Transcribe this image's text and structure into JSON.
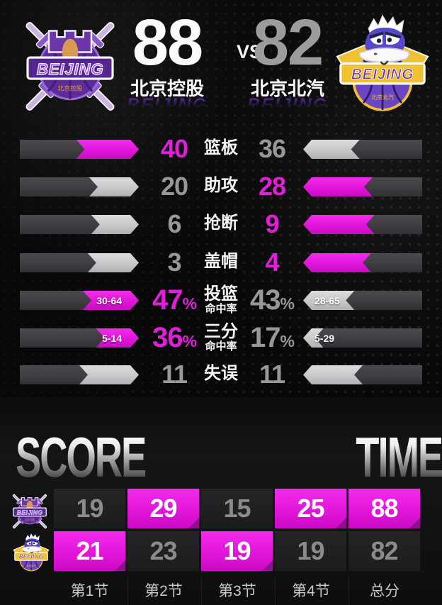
{
  "header": {
    "vs": "VS",
    "home": {
      "name": "北京控股",
      "latin": "BEIJING",
      "score": "88"
    },
    "away": {
      "name": "北京北汽",
      "latin": "BEIJING",
      "score": "82"
    }
  },
  "stats": {
    "rows": [
      {
        "label": "篮板",
        "home": "40",
        "away": "36",
        "home_suffix": "",
        "away_suffix": "",
        "home_detail": "",
        "away_detail": "",
        "type": "count",
        "home_val": 40,
        "away_val": 36,
        "highlight": "home"
      },
      {
        "label": "助攻",
        "home": "20",
        "away": "28",
        "home_suffix": "",
        "away_suffix": "",
        "home_detail": "",
        "away_detail": "",
        "type": "count",
        "home_val": 20,
        "away_val": 28,
        "highlight": "away"
      },
      {
        "label": "抢断",
        "home": "6",
        "away": "9",
        "home_suffix": "",
        "away_suffix": "",
        "home_detail": "",
        "away_detail": "",
        "type": "count",
        "home_val": 6,
        "away_val": 9,
        "highlight": "away"
      },
      {
        "label": "盖帽",
        "home": "3",
        "away": "4",
        "home_suffix": "",
        "away_suffix": "",
        "home_detail": "",
        "away_detail": "",
        "type": "count",
        "home_val": 3,
        "away_val": 4,
        "highlight": "away"
      },
      {
        "label": "投篮",
        "label2": "命中率",
        "home": "47",
        "away": "43",
        "home_suffix": "%",
        "away_suffix": "%",
        "home_detail": "30-64",
        "away_detail": "28-65",
        "type": "percent",
        "home_val": 47,
        "away_val": 43,
        "highlight": "home"
      },
      {
        "label": "三分",
        "label2": "命中率",
        "home": "36",
        "away": "17",
        "home_suffix": "%",
        "away_suffix": "%",
        "home_detail": "5-14",
        "away_detail": "5-29",
        "type": "percent",
        "home_val": 36,
        "away_val": 17,
        "highlight": "home"
      },
      {
        "label": "失误",
        "home": "11",
        "away": "11",
        "home_suffix": "",
        "away_suffix": "",
        "home_detail": "",
        "away_detail": "",
        "type": "count",
        "home_val": 11,
        "away_val": 11,
        "highlight": "none"
      }
    ]
  },
  "score_table": {
    "left_title": "SCORE",
    "right_title": "TIME",
    "columns": [
      "第1节",
      "第2节",
      "第3节",
      "第4节",
      "总分"
    ],
    "rows": [
      {
        "team": "北京控股",
        "cells": [
          {
            "v": "19",
            "hl": false
          },
          {
            "v": "29",
            "hl": true
          },
          {
            "v": "15",
            "hl": false
          },
          {
            "v": "25",
            "hl": true
          },
          {
            "v": "88",
            "hl": true
          }
        ]
      },
      {
        "team": "北京北汽",
        "cells": [
          {
            "v": "21",
            "hl": true
          },
          {
            "v": "23",
            "hl": false
          },
          {
            "v": "19",
            "hl": true
          },
          {
            "v": "19",
            "hl": false
          },
          {
            "v": "82",
            "hl": false
          }
        ]
      }
    ]
  },
  "colors": {
    "magenta": "#e215da",
    "light_bar": "#cac7cb",
    "track": "#403d42",
    "number_gray": "#98989a",
    "winner_number": "#e01fd8",
    "home_score_color": "#fbfbfb",
    "away_score_color": "#9c9c9e",
    "latin_purple": "#4f2b92"
  }
}
